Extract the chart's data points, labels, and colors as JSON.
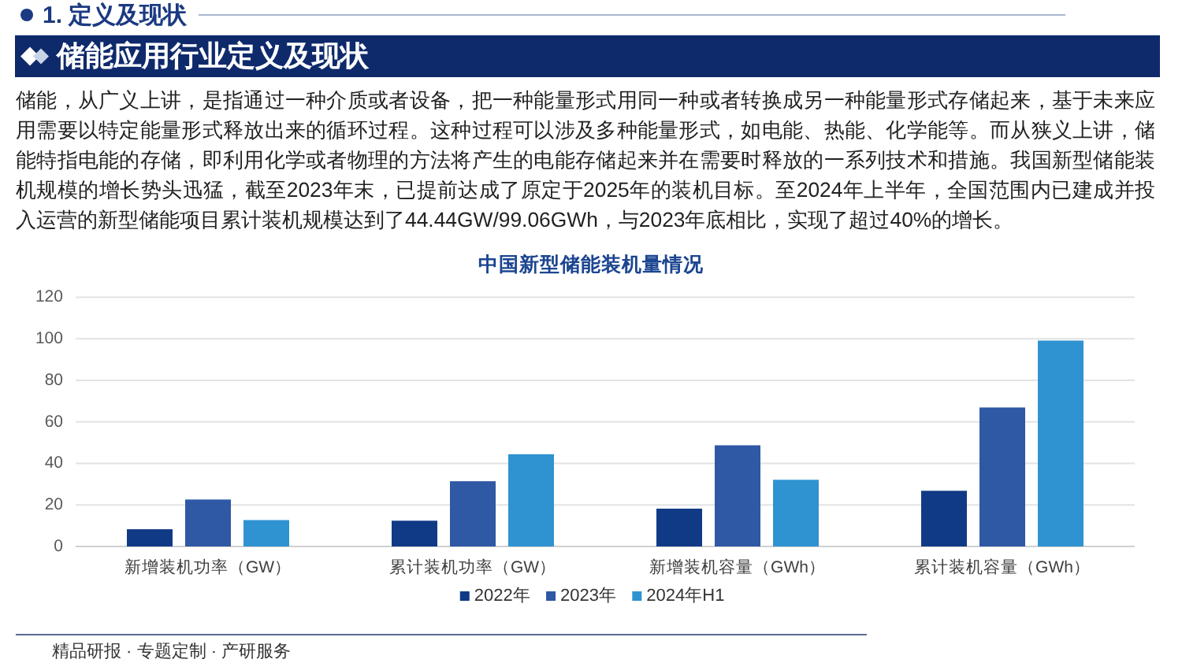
{
  "chart_data": {
    "type": "bar",
    "title": "中国新型储能装机量情况",
    "categories": [
      "新增装机功率（GW）",
      "累计装机功率（GW）",
      "新增装机容量（GWh）",
      "累计装机容量（GWh）"
    ],
    "series": [
      {
        "name": "2022年",
        "color": "#103a86",
        "values": [
          8.3,
          12.4,
          18.2,
          26.8
        ]
      },
      {
        "name": "2023年",
        "color": "#2f58a5",
        "values": [
          22.6,
          31.4,
          48.7,
          66.9
        ]
      },
      {
        "name": "2024年H1",
        "color": "#2f93d1",
        "values": [
          12.7,
          44.4,
          32.1,
          99.1
        ]
      }
    ],
    "ylim": [
      0,
      120
    ],
    "yticks": [
      0,
      20,
      40,
      60,
      80,
      100,
      120
    ],
    "grid": "y",
    "legend": "bottom",
    "annotations": [
      "1. 定义及现状",
      "储能应用行业定义及现状",
      "储能，从广义上讲，是指通过一种介质或者设备，把一种能量形式用同一种或者转换成另一种能量形式存储起来，基于未来应用需要以特定能量形式释放出来的循环过程。这种过程可以涉及多种能量形式，如电能、热能、化学能等。而从狭义上讲，储能特指电能的存储，即利用化学或者物理的方法将产生的电能存储起来并在需要时释放的一系列技术和措施。我国新型储能装机规模的增长势头迅猛，截至2023年末，已提前达成了原定于2025年的装机目标。至2024年上半年，全国范围内已建成并投入运营的新型储能项目累计装机规模达到了44.44GW/99.06GWh，与2023年底相比，实现了超过40%的增长。",
      "精品研报 · 专题定制 · 产研服务"
    ]
  }
}
